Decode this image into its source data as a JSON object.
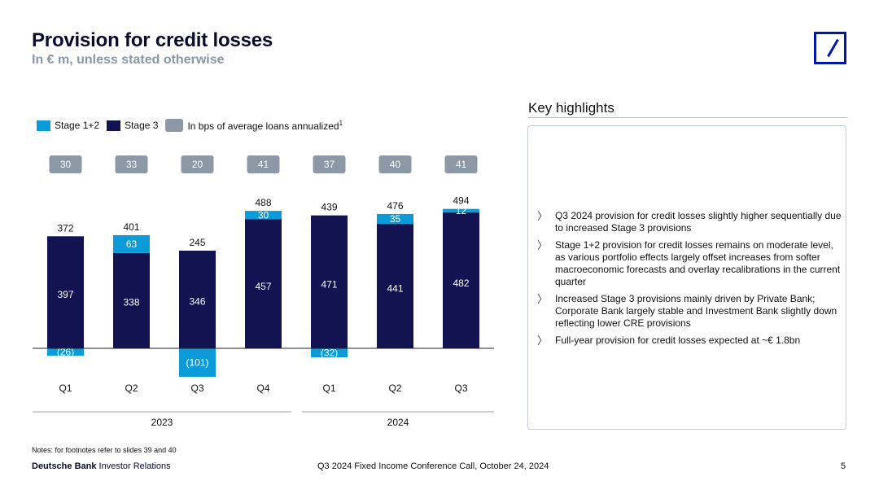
{
  "header": {
    "title": "Provision for credit losses",
    "subtitle": "In € m, unless stated otherwise"
  },
  "legend": {
    "stage12": "Stage 1+2",
    "stage3": "Stage 3",
    "bps": "In bps of average loans annualized",
    "bps_sup": "1"
  },
  "colors": {
    "stage12": "#0a9bd8",
    "stage3": "#121350",
    "bps_box": "#8d98a6",
    "logo": "#0018a8"
  },
  "chart_data": {
    "type": "bar",
    "stacked": true,
    "categories": [
      "Q1",
      "Q2",
      "Q3",
      "Q4",
      "Q1",
      "Q2",
      "Q3"
    ],
    "years": [
      {
        "label": "2023",
        "quarters": [
          0,
          1,
          2,
          3
        ]
      },
      {
        "label": "2024",
        "quarters": [
          4,
          5,
          6
        ]
      }
    ],
    "series": [
      {
        "name": "Stage 3",
        "values": [
          397,
          338,
          346,
          457,
          471,
          441,
          482
        ],
        "labels": [
          "397",
          "338",
          "346",
          "457",
          "471",
          "441",
          "482"
        ]
      },
      {
        "name": "Stage 1+2",
        "values": [
          -26,
          63,
          -101,
          30,
          -32,
          35,
          12
        ],
        "labels": [
          "(26)",
          "63",
          "(101)",
          "30",
          "(32)",
          "35",
          "12"
        ]
      }
    ],
    "totals": [
      "372",
      "401",
      "245",
      "488",
      "439",
      "476",
      "494"
    ],
    "bps": [
      "30",
      "33",
      "20",
      "41",
      "37",
      "40",
      "41"
    ],
    "unit": "€ m"
  },
  "key_highlights": {
    "title": "Key highlights",
    "bullets": [
      "Q3 2024 provision for credit losses slightly higher sequentially due to increased Stage 3 provisions",
      "Stage 1+2 provision for credit losses remains on moderate level, as various portfolio effects largely offset increases from softer macroeconomic forecasts and overlay recalibrations in the current quarter",
      "Increased Stage 3 provisions mainly driven by Private Bank; Corporate Bank largely stable and Investment Bank slightly down reflecting lower CRE provisions",
      "Full-year provision for credit losses expected at ~€ 1.8bn"
    ],
    "marker": "〉"
  },
  "footer": {
    "notes": "Notes: for footnotes refer to slides 39 and 40",
    "brand": "Deutsche Bank",
    "brand_suffix": " Investor Relations",
    "event": "Q3 2024 Fixed Income Conference Call, October 24, 2024",
    "page": "5"
  }
}
